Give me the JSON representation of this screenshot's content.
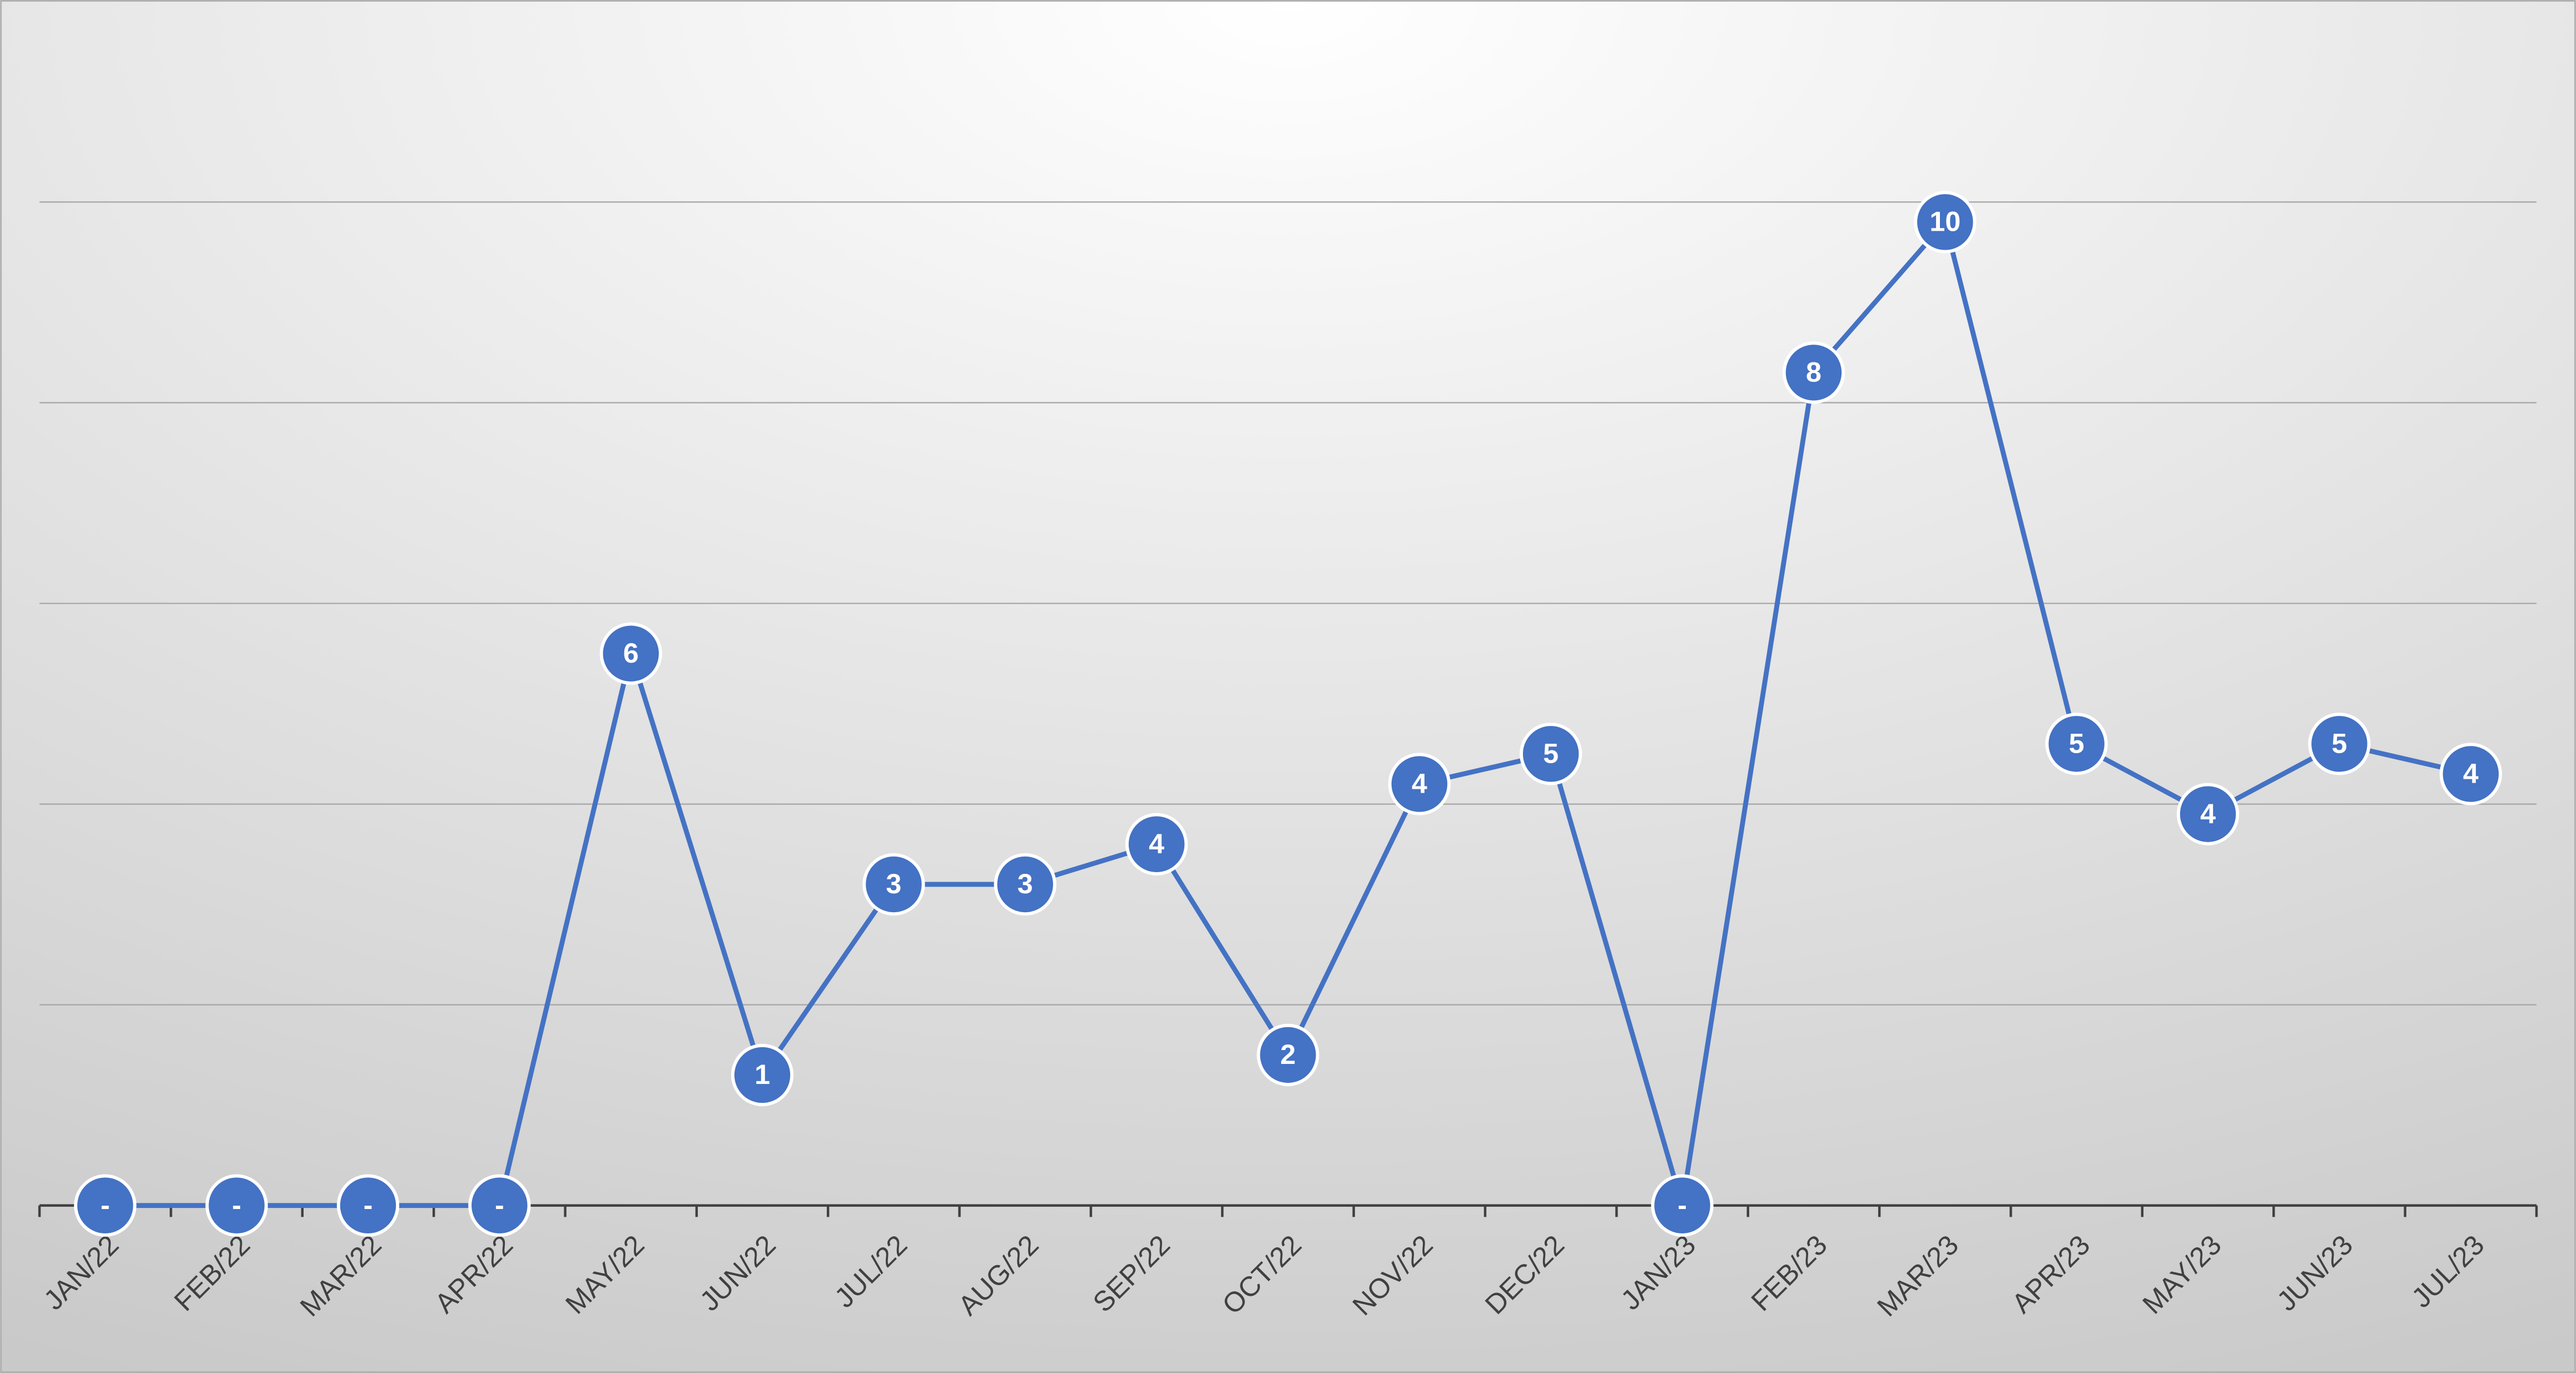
{
  "chart_data": {
    "type": "line",
    "categories": [
      "JAN/22",
      "FEB/22",
      "MAR/22",
      "APR/22",
      "MAY/22",
      "JUN/22",
      "JUL/22",
      "AUG/22",
      "SEP/22",
      "OCT/22",
      "NOV/22",
      "DEC/22",
      "JAN/23",
      "FEB/23",
      "MAR/23",
      "APR/23",
      "MAY/23",
      "JUN/23",
      "JUL/23"
    ],
    "values": [
      0,
      0,
      0,
      0,
      5.5,
      1.3,
      3.2,
      3.2,
      3.6,
      1.5,
      4.2,
      4.5,
      0,
      8.3,
      9.8,
      4.6,
      3.9,
      4.6,
      4.3
    ],
    "value_labels": [
      "-",
      "-",
      "-",
      "-",
      "6",
      "1",
      "3",
      "3",
      "4",
      "2",
      "4",
      "5",
      "-",
      "8",
      "10",
      "5",
      "4",
      "5",
      "4"
    ],
    "color": "#4472c4",
    "ylim": [
      0,
      10
    ],
    "yticks": [
      2,
      4,
      6,
      8,
      10
    ],
    "grid": true
  }
}
